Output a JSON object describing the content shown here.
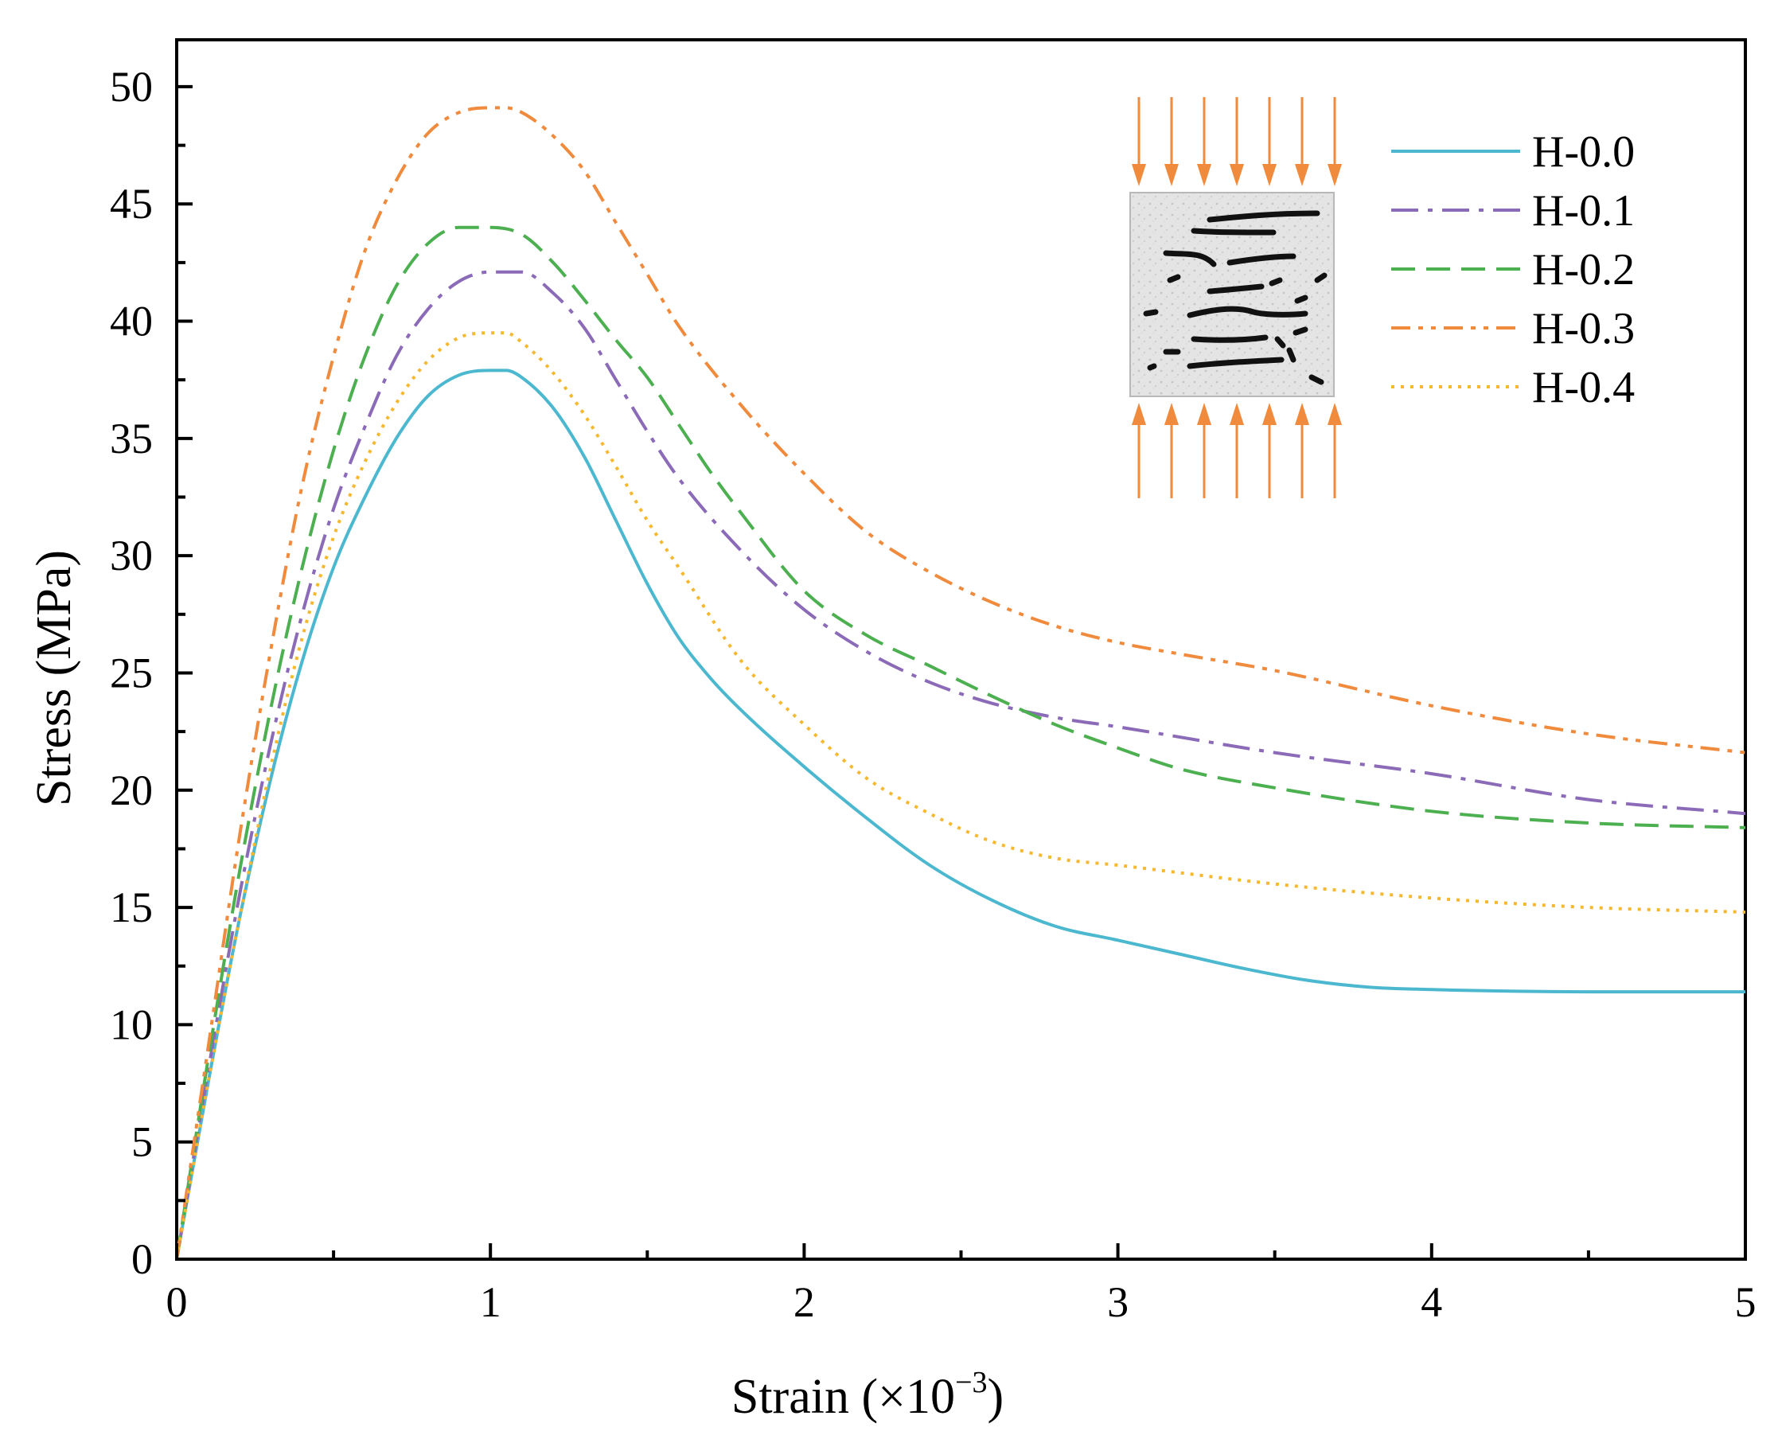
{
  "chart_data": {
    "type": "line",
    "title": "",
    "xlabel": "Strain (×10",
    "xlabel_exp": "−3",
    "xlabel_close": ")",
    "ylabel": "Stress (MPa)",
    "xlim": [
      0,
      5
    ],
    "ylim": [
      0,
      52
    ],
    "x_ticks": [
      0,
      1,
      2,
      3,
      4,
      5
    ],
    "x_tick_labels": [
      "0",
      "1",
      "2",
      "3",
      "4",
      "5"
    ],
    "y_ticks": [
      0,
      5,
      10,
      15,
      20,
      25,
      30,
      35,
      40,
      45,
      50
    ],
    "y_tick_labels": [
      "0",
      "5",
      "10",
      "15",
      "20",
      "25",
      "30",
      "35",
      "40",
      "45",
      "50"
    ],
    "legend_position": "top-right",
    "inset": "concrete specimen with horizontal cracks under vertical compression",
    "series": [
      {
        "name": "H-0.0",
        "color": "#4cb8cf",
        "style": "solid",
        "x": [
          0,
          0.1,
          0.2,
          0.3,
          0.4,
          0.5,
          0.6,
          0.7,
          0.8,
          0.9,
          1.0,
          1.05,
          1.1,
          1.2,
          1.3,
          1.4,
          1.5,
          1.6,
          1.7,
          1.8,
          2.0,
          2.2,
          2.4,
          2.6,
          2.8,
          3.0,
          3.2,
          3.4,
          3.6,
          3.8,
          4.0,
          4.5,
          5.0
        ],
        "y": [
          0,
          7.5,
          14.5,
          20.5,
          25.5,
          29.5,
          32.5,
          35.0,
          36.8,
          37.7,
          37.9,
          37.9,
          37.6,
          36.3,
          34.2,
          31.5,
          28.8,
          26.5,
          24.8,
          23.4,
          21.0,
          18.8,
          16.8,
          15.3,
          14.2,
          13.6,
          13.0,
          12.4,
          11.9,
          11.6,
          11.5,
          11.4,
          11.4
        ]
      },
      {
        "name": "H-0.1",
        "color": "#8b6ab8",
        "style": "dashdot",
        "x": [
          0,
          0.1,
          0.2,
          0.3,
          0.4,
          0.5,
          0.6,
          0.7,
          0.8,
          0.9,
          1.0,
          1.1,
          1.2,
          1.3,
          1.4,
          1.5,
          1.6,
          1.8,
          2.0,
          2.2,
          2.4,
          2.6,
          2.8,
          3.0,
          3.5,
          4.0,
          4.5,
          5.0
        ],
        "y": [
          0,
          8.0,
          15.5,
          22.0,
          27.5,
          32.0,
          35.5,
          38.5,
          40.5,
          41.7,
          42.1,
          42.1,
          41.2,
          39.7,
          37.5,
          35.3,
          33.3,
          30.2,
          27.7,
          25.9,
          24.6,
          23.7,
          23.1,
          22.7,
          21.6,
          20.7,
          19.6,
          19.0
        ]
      },
      {
        "name": "H-0.2",
        "color": "#4caf50",
        "style": "dashed",
        "x": [
          0,
          0.1,
          0.2,
          0.3,
          0.4,
          0.5,
          0.6,
          0.7,
          0.8,
          0.9,
          1.0,
          1.1,
          1.2,
          1.3,
          1.4,
          1.5,
          1.6,
          1.7,
          1.8,
          2.0,
          2.2,
          2.4,
          2.6,
          2.8,
          3.0,
          3.2,
          3.5,
          4.0,
          4.5,
          5.0
        ],
        "y": [
          0,
          8.5,
          16.5,
          23.5,
          29.5,
          34.5,
          38.5,
          41.5,
          43.3,
          44.0,
          44.0,
          43.7,
          42.5,
          40.9,
          39.2,
          37.6,
          35.6,
          33.6,
          31.8,
          28.5,
          26.6,
          25.3,
          24.0,
          22.8,
          21.8,
          20.9,
          20.1,
          19.1,
          18.6,
          18.4
        ]
      },
      {
        "name": "H-0.3",
        "color": "#f08a3c",
        "style": "dashdotdot",
        "x": [
          0,
          0.1,
          0.2,
          0.3,
          0.4,
          0.5,
          0.6,
          0.7,
          0.8,
          0.9,
          1.0,
          1.05,
          1.1,
          1.2,
          1.3,
          1.4,
          1.5,
          1.6,
          1.8,
          2.0,
          2.2,
          2.4,
          2.6,
          2.8,
          3.0,
          3.2,
          3.5,
          4.0,
          4.5,
          5.0
        ],
        "y": [
          0,
          9.0,
          18.0,
          26.0,
          33.0,
          38.5,
          43.0,
          46.0,
          48.0,
          48.9,
          49.1,
          49.1,
          48.9,
          47.9,
          46.4,
          44.2,
          42.0,
          39.8,
          36.4,
          33.5,
          31.0,
          29.3,
          28.0,
          27.0,
          26.3,
          25.8,
          25.1,
          23.6,
          22.4,
          21.6
        ]
      },
      {
        "name": "H-0.4",
        "color": "#f5b82e",
        "style": "dotted",
        "x": [
          0,
          0.1,
          0.2,
          0.3,
          0.4,
          0.5,
          0.6,
          0.7,
          0.8,
          0.9,
          1.0,
          1.05,
          1.1,
          1.2,
          1.3,
          1.4,
          1.5,
          1.6,
          1.8,
          2.0,
          2.2,
          2.4,
          2.6,
          2.8,
          3.0,
          3.5,
          4.0,
          4.5,
          5.0
        ],
        "y": [
          0,
          7.5,
          14.5,
          21.0,
          26.5,
          30.8,
          34.0,
          36.5,
          38.3,
          39.3,
          39.5,
          39.5,
          39.1,
          37.8,
          36.0,
          33.8,
          31.5,
          29.5,
          25.5,
          22.8,
          20.5,
          19.0,
          17.8,
          17.1,
          16.8,
          16.0,
          15.4,
          15.0,
          14.8
        ]
      }
    ]
  }
}
